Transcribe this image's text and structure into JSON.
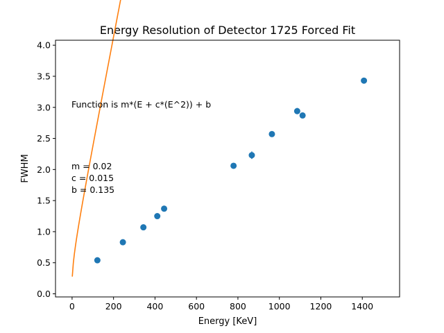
{
  "chart_data": {
    "type": "scatter",
    "title": "Energy Resolution of Detector 1725 Forced Fit",
    "xlabel": "Energy [KeV]",
    "ylabel": "FWHM",
    "xlim": [
      -80,
      1580
    ],
    "ylim": [
      -0.05,
      4.08
    ],
    "xticks": [
      0,
      200,
      400,
      600,
      800,
      1000,
      1200,
      1400
    ],
    "yticks": [
      0.0,
      0.5,
      1.0,
      1.5,
      2.0,
      2.5,
      3.0,
      3.5,
      4.0
    ],
    "grid": false,
    "series": [
      {
        "kind": "points",
        "color": "#1f77b4",
        "points": [
          {
            "x": 122,
            "y": 0.54,
            "err": 0.02
          },
          {
            "x": 245,
            "y": 0.83,
            "err": 0.02
          },
          {
            "x": 344,
            "y": 1.07,
            "err": 0.02
          },
          {
            "x": 411,
            "y": 1.25,
            "err": 0.02
          },
          {
            "x": 444,
            "y": 1.37,
            "err": 0.02
          },
          {
            "x": 779,
            "y": 2.06,
            "err": 0.03
          },
          {
            "x": 867,
            "y": 2.23,
            "err": 0.06
          },
          {
            "x": 964,
            "y": 2.57,
            "err": 0.03
          },
          {
            "x": 1086,
            "y": 2.94,
            "err": 0.05
          },
          {
            "x": 1112,
            "y": 2.87,
            "err": 0.04
          },
          {
            "x": 1408,
            "y": 3.43,
            "err": 0.03
          }
        ]
      },
      {
        "kind": "fit",
        "color": "#ff7f0e",
        "function": "m*(E + c*(E^2)) + b",
        "x_range": [
          1,
          1500
        ]
      }
    ],
    "annotations": {
      "function_text": "Function is m*(E + c*(E^2)) + b",
      "m_text": "m = 0.02",
      "c_text": "c = 0.015",
      "b_text": "b = 0.135"
    }
  }
}
